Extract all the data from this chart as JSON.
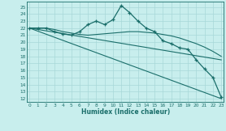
{
  "xlabel": "Humidex (Indice chaleur)",
  "bg_color": "#c8eeed",
  "grid_color": "#a8d8d8",
  "line_color": "#1a6e6a",
  "xlim": [
    -0.3,
    23.3
  ],
  "ylim": [
    11.5,
    25.8
  ],
  "xticks": [
    0,
    1,
    2,
    3,
    4,
    5,
    6,
    7,
    8,
    9,
    10,
    11,
    12,
    13,
    14,
    15,
    16,
    17,
    18,
    19,
    20,
    21,
    22,
    23
  ],
  "yticks": [
    12,
    13,
    14,
    15,
    16,
    17,
    18,
    19,
    20,
    21,
    22,
    23,
    24,
    25
  ],
  "main_line": [
    22,
    22,
    22,
    21.5,
    21.2,
    21.0,
    21.5,
    22.5,
    23.0,
    22.5,
    23.2,
    25.2,
    24.2,
    23.0,
    22.0,
    21.5,
    20.2,
    19.8,
    19.2,
    19.0,
    17.5,
    16.2,
    15.0,
    12.2
  ],
  "line2": [
    22,
    22,
    22,
    21.8,
    21.5,
    21.3,
    21.1,
    21.0,
    21.1,
    21.2,
    21.3,
    21.4,
    21.5,
    21.5,
    21.4,
    21.3,
    21.1,
    20.9,
    20.6,
    20.2,
    19.8,
    19.3,
    18.7,
    18.0
  ],
  "line3_x": [
    0,
    23
  ],
  "line3_y": [
    22,
    17.5
  ],
  "line4_x": [
    0,
    23
  ],
  "line4_y": [
    22,
    12.0
  ]
}
